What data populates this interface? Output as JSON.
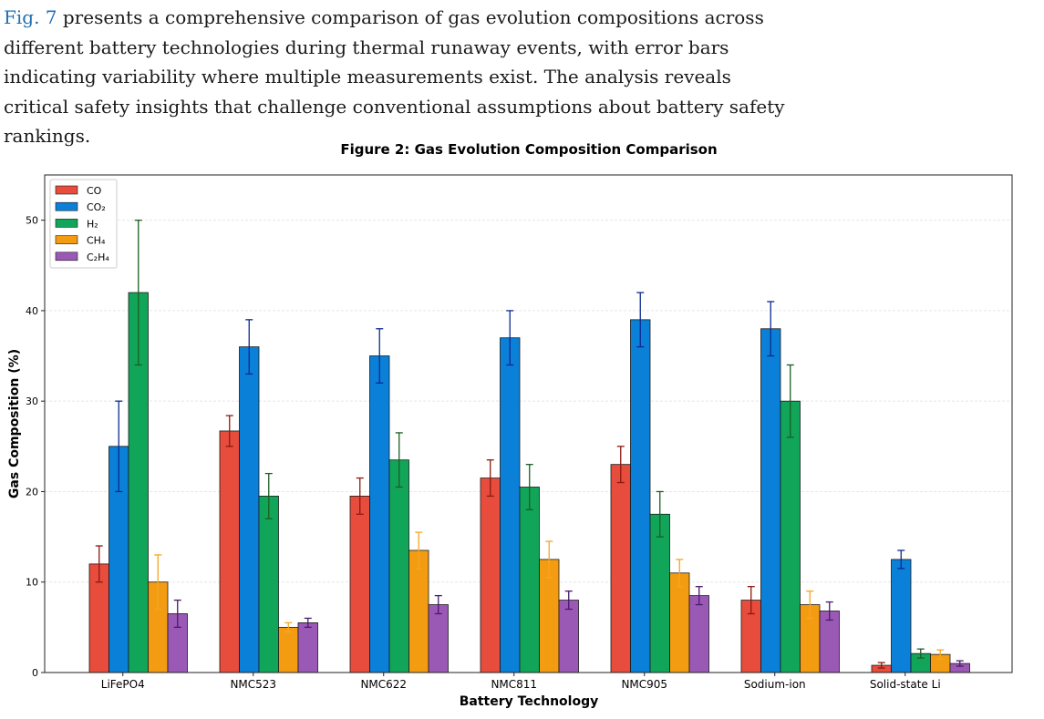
{
  "paragraph": {
    "link": "Fig. 7",
    "text": " presents a comprehensive comparison of gas evolution compositions across different battery technologies during thermal runaway events, with error bars indicating variability where multiple measurements exist. The analysis reveals critical safety insights that challenge conventional assumptions about battery safety rankings."
  },
  "chart_data": {
    "type": "bar",
    "title": "Figure 2: Gas Evolution Composition Comparison",
    "xlabel": "Battery Technology",
    "ylabel": "Gas Composition (%)",
    "ylim": [
      0,
      55
    ],
    "yticks": [
      0,
      10,
      20,
      30,
      40,
      50
    ],
    "grid": true,
    "legend_position": "top-left",
    "categories": [
      "LiFePO4",
      "NMC523",
      "NMC622",
      "NMC811",
      "NMC905",
      "Sodium-ion",
      "Solid-state Li"
    ],
    "series": [
      {
        "name": "CO",
        "color": "#e74c3c",
        "err_color": "#8b1a10",
        "values": [
          12,
          26.7,
          19.5,
          21.5,
          23,
          8,
          0.8
        ],
        "errors": [
          2,
          1.7,
          2,
          2,
          2,
          1.5,
          0.3
        ]
      },
      {
        "name": "CO₂",
        "color": "#0a80d8",
        "err_color": "#0d2a8f",
        "values": [
          25,
          36,
          35,
          37,
          39,
          38,
          12.5
        ],
        "errors": [
          5,
          3,
          3,
          3,
          3,
          3,
          1
        ]
      },
      {
        "name": "H₂",
        "color": "#11a55a",
        "err_color": "#1b5e20",
        "values": [
          42,
          19.5,
          23.5,
          20.5,
          17.5,
          30,
          2.1
        ],
        "errors": [
          8,
          2.5,
          3,
          2.5,
          2.5,
          4,
          0.5
        ]
      },
      {
        "name": "CH₄",
        "color": "#f39c12",
        "err_color": "#f5a623",
        "values": [
          10,
          5,
          13.5,
          12.5,
          11,
          7.5,
          2
        ],
        "errors": [
          3,
          0.5,
          2,
          2,
          1.5,
          1.5,
          0.5
        ]
      },
      {
        "name": "C₂H₄",
        "color": "#9b59b6",
        "err_color": "#4a1a6b",
        "values": [
          6.5,
          5.5,
          7.5,
          8,
          8.5,
          6.8,
          1
        ],
        "errors": [
          1.5,
          0.5,
          1,
          1,
          1,
          1,
          0.3
        ]
      }
    ]
  }
}
